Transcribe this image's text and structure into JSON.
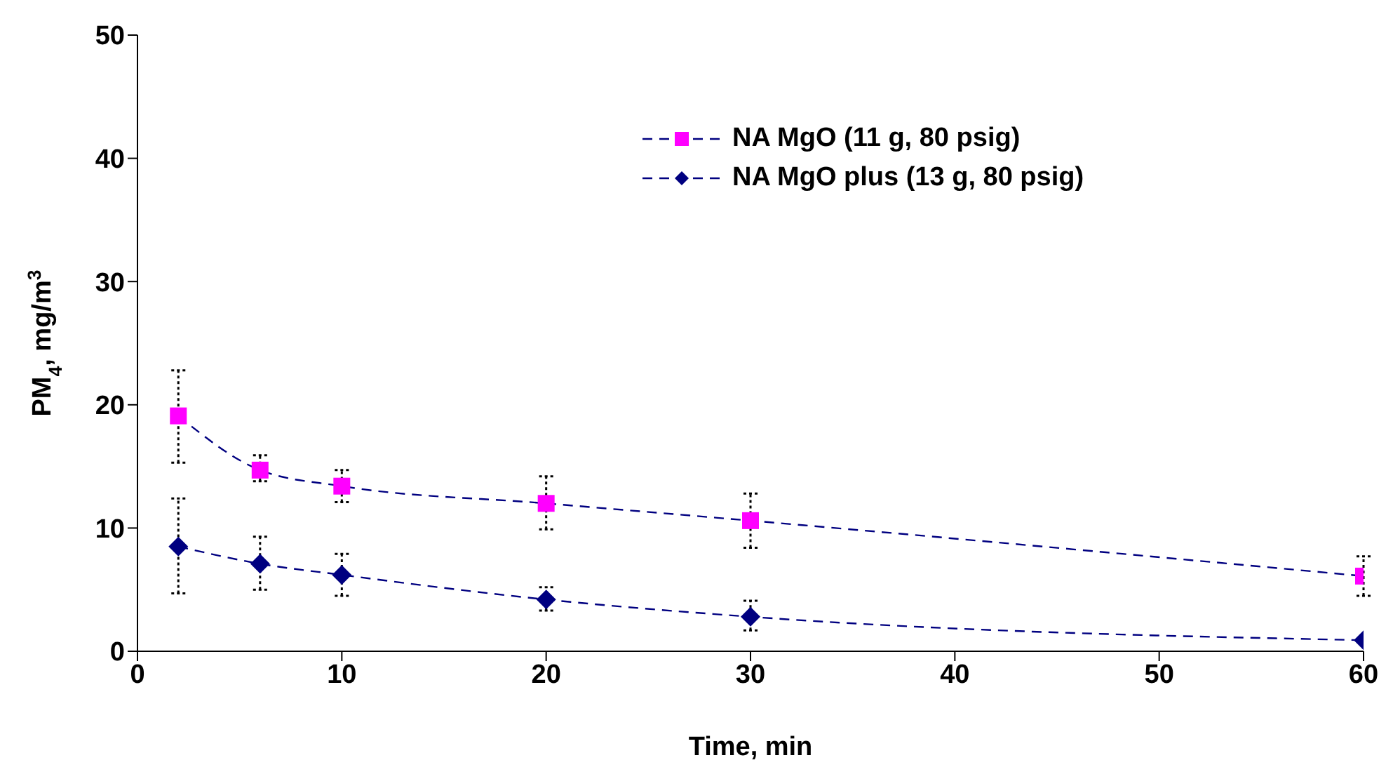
{
  "chart_data": {
    "type": "line",
    "xlabel": "Time, min",
    "ylabel": "PM$_{4}$, mg/m$^{3}$",
    "xlim": [
      0,
      60
    ],
    "xticks": [
      0,
      10,
      20,
      30,
      40,
      50,
      60
    ],
    "ylim": [
      0,
      50
    ],
    "yticks": [
      0,
      10,
      20,
      30,
      40,
      50
    ],
    "grid": false,
    "legend": "top right",
    "line_style": "dashed",
    "series": [
      {
        "name": "NA MgO (11 g, 80 psig)",
        "color": "#ff00ff",
        "marker": "square",
        "x": [
          2,
          6,
          10,
          20,
          30,
          60
        ],
        "values": [
          19.1,
          14.7,
          13.4,
          12.0,
          10.6,
          6.1
        ],
        "errors": [
          [
            15.3,
            22.8
          ],
          [
            13.8,
            15.9
          ],
          [
            12.1,
            14.7
          ],
          [
            9.9,
            14.2
          ],
          [
            8.4,
            12.8
          ],
          [
            4.5,
            7.7
          ]
        ]
      },
      {
        "name": "NA MgO plus (13 g, 80 psig)",
        "color": "#000080",
        "marker": "diamond",
        "x": [
          2,
          6,
          10,
          20,
          30,
          60
        ],
        "values": [
          8.5,
          7.1,
          6.2,
          4.2,
          2.8,
          0.9
        ],
        "errors": [
          [
            4.7,
            12.4
          ],
          [
            5.0,
            9.3
          ],
          [
            4.5,
            7.9
          ],
          [
            3.3,
            5.2
          ],
          [
            1.7,
            4.1
          ],
          null
        ]
      }
    ]
  }
}
